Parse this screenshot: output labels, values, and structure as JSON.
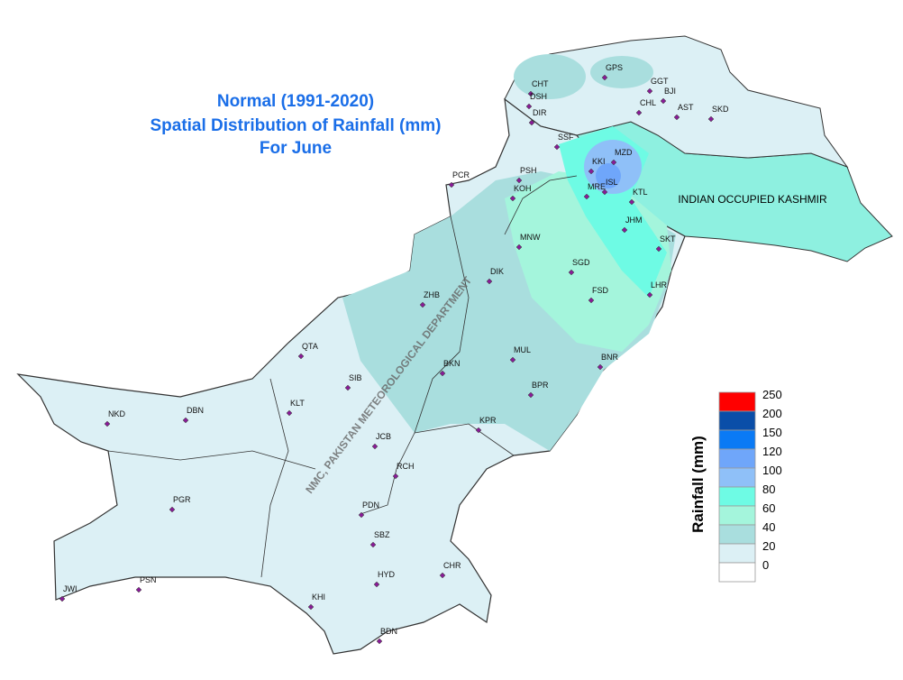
{
  "title": [
    "Normal (1991-2020)",
    "Spatial Distribution of Rainfall (mm)",
    "For June"
  ],
  "region_label": "INDIAN OCCUPIED KASHMIR",
  "watermark": "NMC, PAKISTAN METEOROLOGICAL DEPARTMENT",
  "legend": {
    "title": "Rainfall (mm)",
    "items": [
      {
        "label": "250",
        "color": "#ff0000"
      },
      {
        "label": "200",
        "color": "#0a4ea8"
      },
      {
        "label": "150",
        "color": "#0a7af5"
      },
      {
        "label": "120",
        "color": "#6fa6fa"
      },
      {
        "label": "100",
        "color": "#8fc0f8"
      },
      {
        "label": "80",
        "color": "#6efbe4"
      },
      {
        "label": "60",
        "color": "#a4f5dc"
      },
      {
        "label": "40",
        "color": "#a9dede"
      },
      {
        "label": "20",
        "color": "#dcf0f5"
      },
      {
        "label": "0",
        "color": "#ffffff"
      }
    ]
  },
  "stations": [
    "CHT",
    "DSH",
    "DIR",
    "GPS",
    "GGT",
    "BJI",
    "CHL",
    "AST",
    "SKD",
    "SSF",
    "PSH",
    "KOH",
    "PCR",
    "KKI",
    "MZD",
    "MRE",
    "ISL",
    "KTL",
    "JHM",
    "SKT",
    "MNW",
    "SGD",
    "DIK",
    "FSD",
    "LHR",
    "ZHB",
    "QTA",
    "MUL",
    "BKN",
    "SIB",
    "BNR",
    "BPR",
    "NKD",
    "DBN",
    "KLT",
    "KPR",
    "JCB",
    "RCH",
    "PGR",
    "PDN",
    "SBZ",
    "JWI",
    "PSN",
    "CHR",
    "HYD",
    "KHI",
    "BDN"
  ]
}
